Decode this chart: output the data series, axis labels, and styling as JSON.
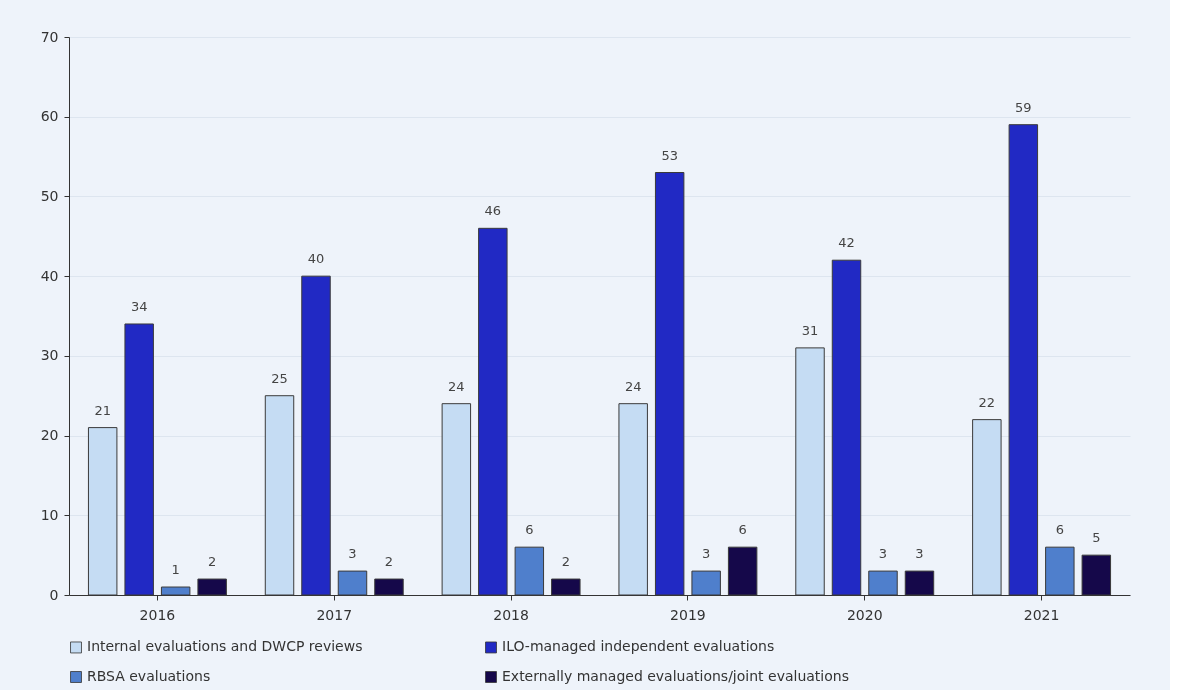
{
  "chart_data": {
    "type": "bar",
    "categories": [
      "2016",
      "2017",
      "2018",
      "2019",
      "2020",
      "2021"
    ],
    "series": [
      {
        "name": "Internal evaluations and DWCP reviews",
        "color": "#c5dcf3",
        "values": [
          21,
          25,
          24,
          24,
          31,
          22
        ]
      },
      {
        "name": "ILO-managed independent evaluations",
        "color": "#2129c4",
        "values": [
          34,
          40,
          46,
          53,
          42,
          59
        ]
      },
      {
        "name": "RBSA evaluations",
        "color": "#4f7fcc",
        "values": [
          1,
          3,
          6,
          3,
          3,
          6
        ]
      },
      {
        "name": "Externally managed evaluations/joint evaluations",
        "color": "#15084a",
        "values": [
          2,
          2,
          2,
          6,
          3,
          5
        ]
      }
    ],
    "ylim": [
      0,
      70
    ],
    "yticks": [
      0,
      10,
      20,
      30,
      40,
      50,
      60,
      70
    ],
    "grid": "y",
    "legend": "bottom",
    "data_labels": true
  }
}
